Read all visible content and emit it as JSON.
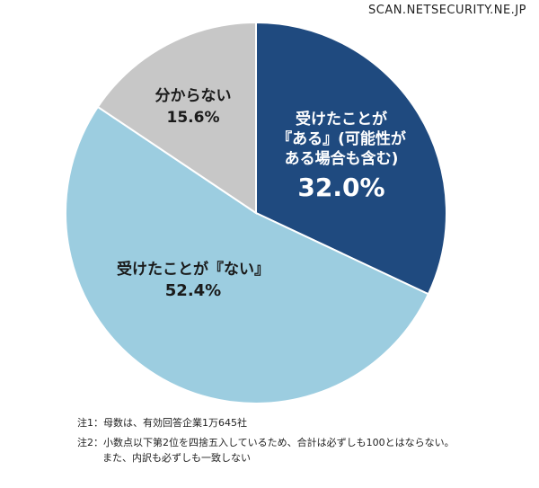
{
  "watermark": "SCAN.NETSECURITY.NE.JP",
  "chart_data": {
    "type": "pie",
    "slices": [
      {
        "label_lines": [
          "受けたことが",
          "『ある』(可能性が",
          "ある場合も含む)"
        ],
        "value": 32.0,
        "value_label": "32.0%",
        "color": "#1f4a7f",
        "text_color": "#ffffff"
      },
      {
        "label_lines": [
          "受けたことが『ない』"
        ],
        "value": 52.4,
        "value_label": "52.4%",
        "color": "#9ccde0",
        "text_color": "#1a1a1a"
      },
      {
        "label_lines": [
          "分からない"
        ],
        "value": 15.6,
        "value_label": "15.6%",
        "color": "#c7c7c7",
        "text_color": "#1a1a1a"
      }
    ],
    "start_angle_deg": 0,
    "direction": "clockwise"
  },
  "notes": {
    "note1": "注1：母数は、有効回答企業1万645社",
    "note2_line1": "注2：小数点以下第2位を四捨五入しているため、合計は必ずしも100とはならない。",
    "note2_line2": "また、内訳も必ずしも一致しない"
  }
}
